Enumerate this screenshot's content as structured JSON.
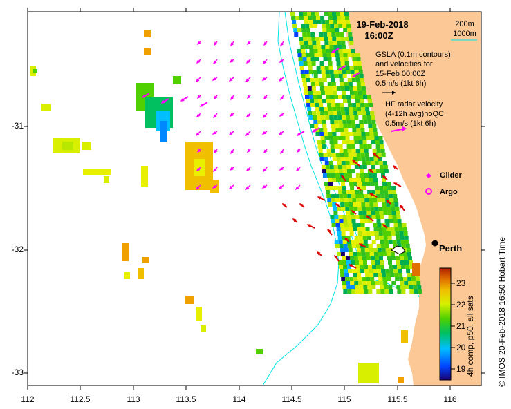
{
  "title": {
    "date": "19-Feb-2018",
    "time": "16:00Z"
  },
  "depth_legend": {
    "shallow": "200m",
    "deep": "1000m"
  },
  "gsla": {
    "line1": "GSLA (0.1m contours)",
    "line2": "and velocities for",
    "line3": "15-Feb 00:00Z",
    "scale": "0.5m/s (1kt 6h)"
  },
  "hf_radar": {
    "line1": "HF radar velocity",
    "line2": "(4-12h avg)noQC",
    "scale": "0.5m/s (1kt 6h)"
  },
  "markers": {
    "glider": "Glider",
    "argo": "Argo",
    "city": "Perth"
  },
  "axes": {
    "x_ticks": [
      "112",
      "112.5",
      "113",
      "113.5",
      "114",
      "114.5",
      "115",
      "115.5",
      "116"
    ],
    "y_ticks": [
      "-31",
      "-32",
      "-33"
    ]
  },
  "colorbar": {
    "ticks": [
      "23",
      "22",
      "21",
      "20",
      "19"
    ],
    "label": "4h comp, p50, all sats"
  },
  "credit": "© IMOS 20-Feb-2018 16:50 Hobart Time",
  "colors": {
    "land": "#fbc896",
    "magenta": "#ff00ff",
    "red": "#e00000",
    "cyan": "#00e5e5",
    "black": "#000000"
  }
}
